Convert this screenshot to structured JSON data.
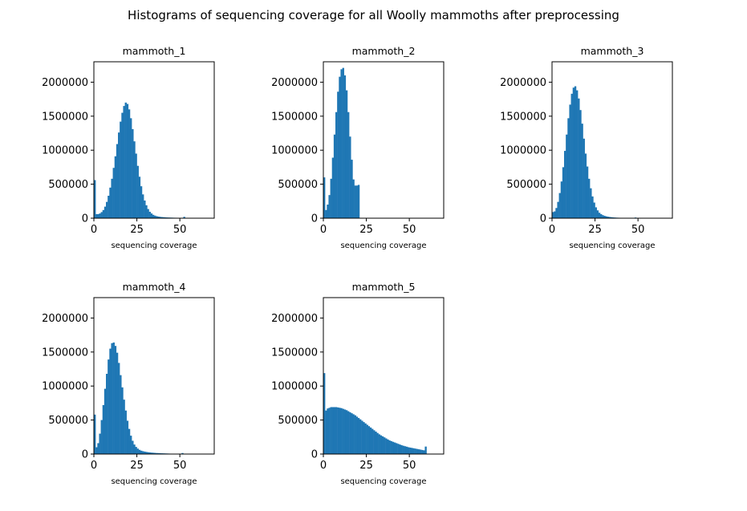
{
  "figure_title": "Histograms of sequencing coverage for all Woolly mammoths after preprocessing",
  "colors": {
    "bar": "#1f77b4",
    "axis": "#000000",
    "background": "#ffffff"
  },
  "chart_data": [
    {
      "type": "bar",
      "title": "mammoth_1",
      "xlabel": "sequencing coverage",
      "ylabel": "",
      "xlim": [
        0,
        70
      ],
      "ylim": [
        0,
        2300000
      ],
      "xticks": [
        0,
        25,
        50
      ],
      "yticks": [
        0,
        500000,
        1000000,
        1500000,
        2000000
      ],
      "bin_width": 1,
      "x": [
        0,
        1,
        2,
        3,
        4,
        5,
        6,
        7,
        8,
        9,
        10,
        11,
        12,
        13,
        14,
        15,
        16,
        17,
        18,
        19,
        20,
        21,
        22,
        23,
        24,
        25,
        26,
        27,
        28,
        29,
        30,
        31,
        32,
        33,
        34,
        35,
        36,
        37,
        38,
        39,
        40,
        41,
        42,
        43,
        44,
        45,
        46,
        47,
        48,
        49,
        50,
        51,
        52,
        53,
        54,
        55
      ],
      "values": [
        560000,
        60000,
        60000,
        70000,
        90000,
        120000,
        170000,
        240000,
        330000,
        450000,
        580000,
        740000,
        910000,
        1090000,
        1260000,
        1420000,
        1550000,
        1650000,
        1700000,
        1680000,
        1600000,
        1470000,
        1310000,
        1130000,
        950000,
        770000,
        610000,
        470000,
        350000,
        260000,
        190000,
        135000,
        95000,
        70000,
        50000,
        38000,
        30000,
        24000,
        20000,
        17000,
        15000,
        13000,
        11000,
        10000,
        9000,
        8000,
        7000,
        6500,
        6000,
        5500,
        5000,
        4500,
        20000,
        3000,
        2000,
        1500
      ]
    },
    {
      "type": "bar",
      "title": "mammoth_2",
      "xlabel": "sequencing coverage",
      "ylabel": "",
      "xlim": [
        0,
        70
      ],
      "ylim": [
        0,
        2300000
      ],
      "xticks": [
        0,
        25,
        50
      ],
      "yticks": [
        0,
        500000,
        1000000,
        1500000,
        2000000
      ],
      "bin_width": 1,
      "x": [
        0,
        1,
        2,
        3,
        4,
        5,
        6,
        7,
        8,
        9,
        10,
        11,
        12,
        13,
        14,
        15,
        16,
        17,
        18,
        19,
        20
      ],
      "values": [
        600000,
        120000,
        200000,
        340000,
        580000,
        890000,
        1230000,
        1560000,
        1860000,
        2080000,
        2190000,
        2210000,
        2100000,
        1880000,
        1560000,
        1200000,
        860000,
        570000,
        480000,
        480000,
        490000
      ]
    },
    {
      "type": "bar",
      "title": "mammoth_3",
      "xlabel": "sequencing coverage",
      "ylabel": "",
      "xlim": [
        0,
        70
      ],
      "ylim": [
        0,
        2300000
      ],
      "xticks": [
        0,
        25,
        50
      ],
      "yticks": [
        0,
        500000,
        1000000,
        1500000,
        2000000
      ],
      "bin_width": 1,
      "x": [
        0,
        1,
        2,
        3,
        4,
        5,
        6,
        7,
        8,
        9,
        10,
        11,
        12,
        13,
        14,
        15,
        16,
        17,
        18,
        19,
        20,
        21,
        22,
        23,
        24,
        25,
        26,
        27,
        28,
        29,
        30,
        31,
        32,
        33,
        34,
        35,
        36,
        37,
        38,
        39,
        40,
        41,
        42,
        43,
        44,
        45,
        46,
        47,
        48,
        49,
        50
      ],
      "values": [
        90000,
        100000,
        150000,
        240000,
        370000,
        540000,
        750000,
        990000,
        1230000,
        1470000,
        1670000,
        1830000,
        1920000,
        1940000,
        1880000,
        1760000,
        1590000,
        1390000,
        1170000,
        950000,
        760000,
        580000,
        440000,
        320000,
        230000,
        160000,
        115000,
        80000,
        60000,
        45000,
        35000,
        28000,
        22000,
        18000,
        15000,
        12000,
        10000,
        8000,
        7000,
        6000,
        5000,
        4500,
        4000,
        3500,
        3000,
        2500,
        2000,
        1800,
        10000,
        1500,
        1000
      ]
    },
    {
      "type": "bar",
      "title": "mammoth_4",
      "xlabel": "sequencing coverage",
      "ylabel": "",
      "xlim": [
        0,
        70
      ],
      "ylim": [
        0,
        2300000
      ],
      "xticks": [
        0,
        25,
        50
      ],
      "yticks": [
        0,
        500000,
        1000000,
        1500000,
        2000000
      ],
      "bin_width": 1,
      "x": [
        0,
        1,
        2,
        3,
        4,
        5,
        6,
        7,
        8,
        9,
        10,
        11,
        12,
        13,
        14,
        15,
        16,
        17,
        18,
        19,
        20,
        21,
        22,
        23,
        24,
        25,
        26,
        27,
        28,
        29,
        30,
        31,
        32,
        33,
        34,
        35,
        36,
        37,
        38,
        39,
        40,
        41,
        42,
        43,
        44,
        45,
        46,
        47,
        48,
        49,
        50,
        51,
        52
      ],
      "values": [
        580000,
        100000,
        160000,
        300000,
        500000,
        720000,
        960000,
        1180000,
        1390000,
        1550000,
        1630000,
        1640000,
        1590000,
        1490000,
        1340000,
        1160000,
        980000,
        800000,
        640000,
        490000,
        370000,
        270000,
        195000,
        140000,
        105000,
        80000,
        62000,
        50000,
        42000,
        36000,
        31000,
        27000,
        24000,
        21000,
        19000,
        17000,
        15000,
        14000,
        12500,
        11000,
        10000,
        9000,
        8000,
        7000,
        6000,
        5500,
        5000,
        4500,
        4000,
        3500,
        3000,
        15000,
        2000
      ]
    },
    {
      "type": "bar",
      "title": "mammoth_5",
      "xlabel": "sequencing coverage",
      "ylabel": "",
      "xlim": [
        0,
        70
      ],
      "ylim": [
        0,
        2300000
      ],
      "xticks": [
        0,
        25,
        50
      ],
      "yticks": [
        0,
        500000,
        1000000,
        1500000,
        2000000
      ],
      "bin_width": 1,
      "x": [
        0,
        1,
        2,
        3,
        4,
        5,
        6,
        7,
        8,
        9,
        10,
        11,
        12,
        13,
        14,
        15,
        16,
        17,
        18,
        19,
        20,
        21,
        22,
        23,
        24,
        25,
        26,
        27,
        28,
        29,
        30,
        31,
        32,
        33,
        34,
        35,
        36,
        37,
        38,
        39,
        40,
        41,
        42,
        43,
        44,
        45,
        46,
        47,
        48,
        49,
        50,
        51,
        52,
        53,
        54,
        55,
        56,
        57,
        58,
        59
      ],
      "values": [
        1190000,
        640000,
        670000,
        680000,
        690000,
        690000,
        690000,
        690000,
        685000,
        680000,
        675000,
        665000,
        655000,
        645000,
        630000,
        615000,
        600000,
        585000,
        570000,
        550000,
        530000,
        510000,
        490000,
        470000,
        450000,
        430000,
        410000,
        390000,
        370000,
        350000,
        330000,
        310000,
        290000,
        275000,
        260000,
        245000,
        230000,
        215000,
        200000,
        190000,
        180000,
        170000,
        160000,
        150000,
        140000,
        130000,
        122000,
        115000,
        108000,
        100000,
        95000,
        90000,
        85000,
        80000,
        75000,
        70000,
        65000,
        60000,
        55000,
        110000
      ]
    }
  ]
}
